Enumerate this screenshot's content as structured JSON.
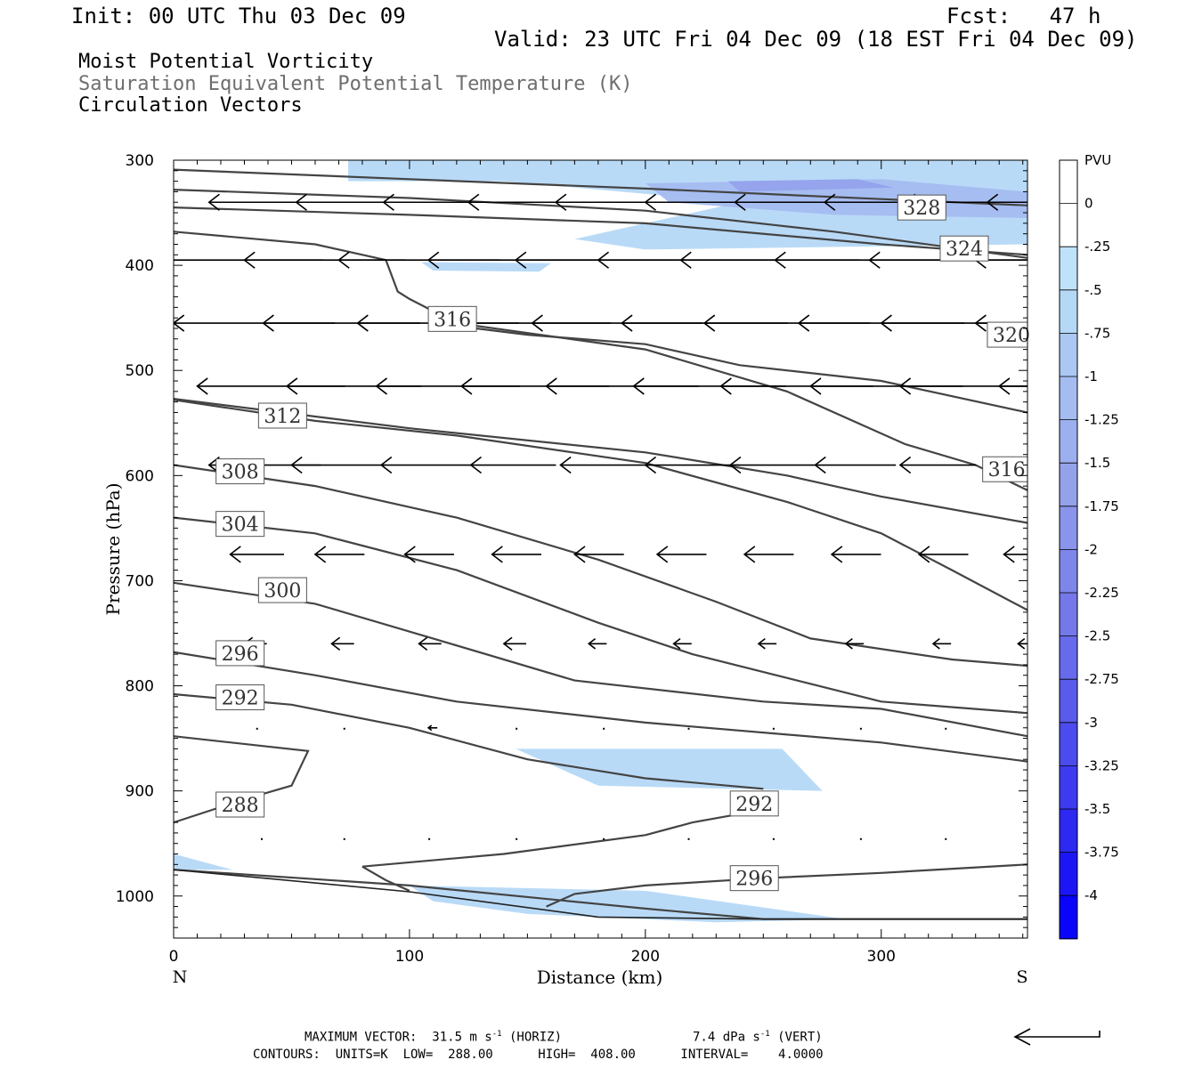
{
  "header": {
    "init": "Init: 00 UTC Thu 03 Dec 09",
    "fcst": "Fcst:   47 h",
    "valid": "Valid: 23 UTC Fri 04 Dec 09 (18 EST Fri 04 Dec 09)"
  },
  "titles": {
    "line1": "Moist Potential Vorticity",
    "line2": "Saturation Equivalent Potential Temperature (K)",
    "line3": "Circulation Vectors"
  },
  "footer": {
    "max_vector": "MAXIMUM VECTOR:  31.5 m s",
    "horiz": " (HORIZ)",
    "vert_value": "7.4 dPa s",
    "vert": " (VERT)",
    "exp": "-1",
    "contours": "CONTOURS:  UNITS=K  LOW=  288.00      HIGH=  408.00      INTERVAL=    4.0000"
  },
  "colors": {
    "contour": "#444444",
    "shade_light": "#bfe2fa",
    "shade_mid": "#aac8f2",
    "shade_dark": "#9aaaf0"
  },
  "chart_data": {
    "type": "contour",
    "xlabel": "Distance (km)",
    "ylabel": "Pressure (hPa)",
    "xlim": [
      0,
      362
    ],
    "ylim": [
      1040,
      300
    ],
    "xticks": [
      0,
      100,
      200,
      300
    ],
    "yticks": [
      300,
      400,
      500,
      600,
      700,
      800,
      900,
      1000
    ],
    "x_end_labels": {
      "left": "N",
      "right": "S"
    },
    "colorbar": {
      "title": "PVU",
      "labels": [
        "0",
        "-.25",
        "-.5",
        "-.75",
        "-1",
        "-1.25",
        "-1.5",
        "-1.75",
        "-2",
        "-2.25",
        "-2.5",
        "-2.75",
        "-3",
        "-3.25",
        "-3.5",
        "-3.75",
        "-4"
      ],
      "colors": [
        "#ffffff",
        "#ffffff",
        "#bfe2fa",
        "#b5d8f7",
        "#aac8f2",
        "#a4bcf0",
        "#9cafee",
        "#94a2ec",
        "#8a94ea",
        "#7f86e9",
        "#7478e9",
        "#676aea",
        "#5a5beb",
        "#4c4bed",
        "#3d3aef",
        "#2d28f2",
        "#1c16f5",
        "#0a04fa"
      ]
    },
    "pv_shading": [
      {
        "level": "-.5",
        "points": [
          [
            74,
            300
          ],
          [
            362,
            300
          ],
          [
            362,
            380
          ],
          [
            200,
            385
          ],
          [
            170,
            375
          ],
          [
            240,
            340
          ],
          [
            140,
            320
          ],
          [
            74,
            320
          ]
        ]
      },
      {
        "level": "-1",
        "points": [
          [
            200,
            322
          ],
          [
            300,
            318
          ],
          [
            362,
            330
          ],
          [
            362,
            355
          ],
          [
            280,
            352
          ],
          [
            210,
            340
          ]
        ]
      },
      {
        "level": "-1.5",
        "points": [
          [
            235,
            320
          ],
          [
            290,
            318
          ],
          [
            305,
            326
          ],
          [
            240,
            330
          ]
        ]
      },
      {
        "level": "-.5",
        "points": [
          [
            105,
            397
          ],
          [
            160,
            398
          ],
          [
            155,
            406
          ],
          [
            110,
            405
          ]
        ]
      },
      {
        "level": "-.5",
        "points": [
          [
            145,
            860
          ],
          [
            258,
            860
          ],
          [
            275,
            900
          ],
          [
            180,
            895
          ]
        ]
      },
      {
        "level": "-.5",
        "points": [
          [
            0,
            960
          ],
          [
            25,
            975
          ],
          [
            0,
            975
          ]
        ]
      },
      {
        "level": "-.5",
        "points": [
          [
            100,
            990
          ],
          [
            200,
            995
          ],
          [
            285,
            1022
          ],
          [
            230,
            1025
          ],
          [
            150,
            1017
          ],
          [
            110,
            1005
          ]
        ]
      }
    ],
    "contours": [
      {
        "value": 328,
        "label_at": [
          307,
          345
        ],
        "points": [
          [
            0,
            309
          ],
          [
            100,
            318
          ],
          [
            200,
            327
          ],
          [
            300,
            337
          ],
          [
            362,
            343
          ]
        ]
      },
      {
        "value": 324,
        "label_at": [
          325,
          384
        ],
        "points": [
          [
            0,
            328
          ],
          [
            100,
            336
          ],
          [
            200,
            348
          ],
          [
            280,
            368
          ],
          [
            362,
            393
          ]
        ]
      },
      {
        "value": 324,
        "label_at": null,
        "points": [
          [
            0,
            345
          ],
          [
            100,
            352
          ],
          [
            200,
            360
          ],
          [
            300,
            380
          ],
          [
            362,
            390
          ]
        ]
      },
      {
        "value": 320,
        "label_at": [
          345,
          466
        ],
        "points": [
          [
            0,
            368
          ],
          [
            60,
            380
          ],
          [
            90,
            395
          ],
          [
            95,
            425
          ],
          [
            100,
            432
          ],
          [
            120,
            455
          ],
          [
            200,
            480
          ],
          [
            260,
            520
          ],
          [
            310,
            570
          ],
          [
            340,
            590
          ],
          [
            362,
            614
          ]
        ]
      },
      {
        "value": 316,
        "label_at": [
          108,
          451
        ],
        "points": [
          [
            110,
            455
          ],
          [
            150,
            466
          ],
          [
            200,
            475
          ],
          [
            240,
            495
          ],
          [
            300,
            510
          ],
          [
            362,
            540
          ]
        ]
      },
      {
        "value": 316,
        "label_at": [
          343,
          594
        ],
        "points": [
          [
            0,
            527
          ],
          [
            100,
            555
          ],
          [
            200,
            578
          ],
          [
            260,
            600
          ],
          [
            300,
            620
          ],
          [
            362,
            645
          ]
        ]
      },
      {
        "value": 312,
        "label_at": [
          36,
          543
        ],
        "points": [
          [
            0,
            528
          ],
          [
            60,
            548
          ],
          [
            120,
            562
          ],
          [
            200,
            588
          ],
          [
            260,
            625
          ],
          [
            300,
            655
          ],
          [
            330,
            690
          ],
          [
            362,
            728
          ]
        ]
      },
      {
        "value": 308,
        "label_at": [
          18,
          596
        ],
        "points": [
          [
            0,
            590
          ],
          [
            60,
            610
          ],
          [
            120,
            640
          ],
          [
            180,
            680
          ],
          [
            230,
            720
          ],
          [
            270,
            755
          ],
          [
            330,
            775
          ],
          [
            362,
            781
          ]
        ]
      },
      {
        "value": 304,
        "label_at": [
          18,
          646
        ],
        "points": [
          [
            0,
            640
          ],
          [
            60,
            655
          ],
          [
            120,
            690
          ],
          [
            180,
            740
          ],
          [
            220,
            770
          ],
          [
            300,
            815
          ],
          [
            362,
            826
          ]
        ]
      },
      {
        "value": 300,
        "label_at": [
          36,
          709
        ],
        "points": [
          [
            0,
            702
          ],
          [
            60,
            722
          ],
          [
            110,
            755
          ],
          [
            170,
            795
          ],
          [
            250,
            815
          ],
          [
            300,
            822
          ],
          [
            362,
            848
          ]
        ]
      },
      {
        "value": 296,
        "label_at": [
          18,
          769
        ],
        "points": [
          [
            0,
            768
          ],
          [
            60,
            790
          ],
          [
            120,
            815
          ],
          [
            200,
            835
          ],
          [
            300,
            854
          ],
          [
            362,
            872
          ]
        ]
      },
      {
        "value": 292,
        "label_at": [
          18,
          811
        ],
        "points": [
          [
            0,
            808
          ],
          [
            50,
            818
          ],
          [
            100,
            840
          ],
          [
            150,
            870
          ],
          [
            200,
            888
          ],
          [
            250,
            898
          ]
        ]
      },
      {
        "value": 288,
        "label_at": [
          18,
          913
        ],
        "points": [
          [
            0,
            930
          ],
          [
            30,
            908
          ],
          [
            50,
            895
          ],
          [
            57,
            862
          ],
          [
            0,
            848
          ]
        ]
      },
      {
        "value": 292,
        "label_at": [
          236,
          912
        ],
        "points": [
          [
            80,
            972
          ],
          [
            140,
            960
          ],
          [
            200,
            942
          ],
          [
            220,
            930
          ],
          [
            240,
            922
          ]
        ]
      },
      {
        "value": 292,
        "label_at": null,
        "points": [
          [
            80,
            972
          ],
          [
            90,
            985
          ],
          [
            100,
            995
          ]
        ]
      },
      {
        "value": 296,
        "label_at": [
          236,
          983
        ],
        "points": [
          [
            158,
            1010
          ],
          [
            170,
            998
          ],
          [
            200,
            990
          ],
          [
            250,
            983
          ],
          [
            300,
            978
          ],
          [
            362,
            970
          ]
        ]
      },
      {
        "value": 296,
        "label_at": null,
        "points": [
          [
            0,
            975
          ],
          [
            100,
            990
          ],
          [
            200,
            1012
          ],
          [
            250,
            1022
          ],
          [
            362,
            1022
          ]
        ]
      }
    ],
    "terrain": [
      [
        0,
        975
      ],
      [
        100,
        996
      ],
      [
        180,
        1020
      ],
      [
        250,
        1022
      ],
      [
        362,
        1022
      ]
    ],
    "vectors": [
      {
        "p": 340,
        "points": [
          [
            15,
            34
          ],
          [
            52,
            33
          ],
          [
            89,
            37
          ],
          [
            125,
            40
          ],
          [
            162,
            40
          ],
          [
            200,
            42
          ],
          [
            238,
            42
          ],
          [
            276,
            42
          ],
          [
            310,
            40
          ],
          [
            345,
            40
          ]
        ]
      },
      {
        "p": 395,
        "points": [
          [
            -5,
            36
          ],
          [
            30,
            36
          ],
          [
            70,
            36
          ],
          [
            108,
            38
          ],
          [
            145,
            38
          ],
          [
            180,
            40
          ],
          [
            215,
            40
          ],
          [
            255,
            40
          ],
          [
            295,
            40
          ],
          [
            340,
            40
          ]
        ]
      },
      {
        "p": 455,
        "points": [
          [
            0,
            36
          ],
          [
            38,
            35
          ],
          [
            78,
            36
          ],
          [
            115,
            37
          ],
          [
            152,
            38
          ],
          [
            190,
            37
          ],
          [
            225,
            37
          ],
          [
            265,
            37
          ],
          [
            300,
            38
          ],
          [
            340,
            38
          ]
        ]
      },
      {
        "p": 515,
        "points": [
          [
            10,
            33
          ],
          [
            48,
            30
          ],
          [
            86,
            32
          ],
          [
            122,
            33
          ],
          [
            158,
            34
          ],
          [
            195,
            34
          ],
          [
            232,
            34
          ],
          [
            270,
            34
          ],
          [
            308,
            34
          ],
          [
            350,
            32
          ]
        ]
      },
      {
        "p": 590,
        "points": [
          [
            15,
            25
          ],
          [
            50,
            21
          ],
          [
            88,
            20
          ],
          [
            126,
            19
          ],
          [
            164,
            20
          ],
          [
            200,
            21
          ],
          [
            236,
            19
          ],
          [
            272,
            18
          ],
          [
            308,
            17
          ],
          [
            345,
            16
          ]
        ]
      },
      {
        "p": 675,
        "points": [
          [
            24,
            12
          ],
          [
            60,
            11
          ],
          [
            98,
            11
          ],
          [
            135,
            11
          ],
          [
            170,
            11
          ],
          [
            205,
            11
          ],
          [
            242,
            11
          ],
          [
            279,
            11
          ],
          [
            316,
            11
          ],
          [
            352,
            9
          ]
        ]
      },
      {
        "p": 760,
        "points": [
          [
            30,
            5
          ],
          [
            67,
            5
          ],
          [
            104,
            5
          ],
          [
            140,
            5
          ],
          [
            176,
            4
          ],
          [
            212,
            4
          ],
          [
            248,
            4
          ],
          [
            285,
            4
          ],
          [
            322,
            4
          ],
          [
            358,
            4
          ]
        ]
      },
      {
        "p": 840,
        "points": [
          [
            35,
            1
          ],
          [
            72,
            1
          ],
          [
            108,
            2
          ],
          [
            145,
            1
          ],
          [
            182,
            1
          ],
          [
            218,
            1
          ],
          [
            254,
            1
          ],
          [
            291,
            1
          ],
          [
            327,
            1
          ]
        ]
      },
      {
        "p": 945,
        "points": [
          [
            37,
            1
          ],
          [
            72,
            1
          ],
          [
            108,
            1
          ],
          [
            145,
            1
          ],
          [
            182,
            1
          ],
          [
            218,
            1
          ],
          [
            254,
            1
          ],
          [
            291,
            1
          ],
          [
            327,
            1
          ]
        ]
      }
    ]
  }
}
